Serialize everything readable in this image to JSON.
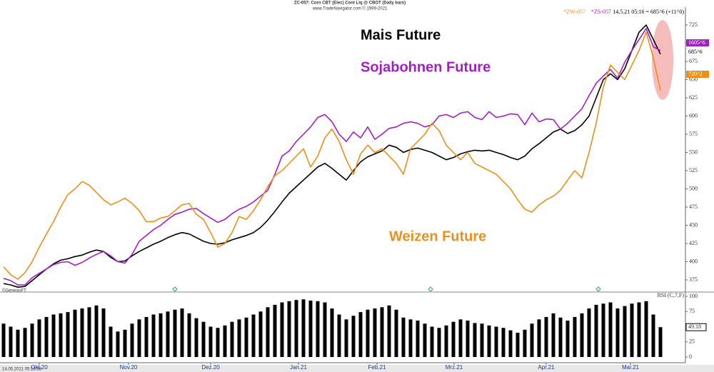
{
  "header": {
    "title": "ZC-057: Corn CBT (Elec) Cont Liq @ CBOT (Daily bars)",
    "source": "www.TradeNavigator.com © 1999-2021",
    "symbols": [
      "*ZW-057",
      "*ZS-057"
    ],
    "quote": "14.5.21 05:16 = 685^6 (+11^0)",
    "credit": "©GenesisFT",
    "timestamp": "14.05.2021 05:16:58"
  },
  "chart_data": [
    {
      "type": "line",
      "annotations": [
        "Mais Future",
        "Sojabohnen Future",
        "Weizen Future"
      ],
      "x": [
        0,
        1,
        2,
        3,
        4,
        5,
        6,
        7,
        8,
        9,
        10,
        11,
        12,
        13,
        14,
        15,
        16,
        17,
        18,
        19,
        20,
        21,
        22,
        23,
        24,
        25,
        26,
        27,
        28,
        29,
        30,
        31,
        32,
        33,
        34,
        35,
        36,
        37,
        38,
        39,
        40,
        41,
        42,
        43,
        44,
        45,
        46,
        47,
        48,
        49,
        50,
        51,
        52,
        53,
        54,
        55,
        56,
        57,
        58,
        59,
        60,
        61,
        62,
        63,
        64,
        65,
        66,
        67,
        68,
        69,
        70,
        71,
        72,
        73,
        74,
        75,
        76,
        77,
        78,
        79,
        80,
        81,
        82,
        83,
        84,
        85,
        86,
        87,
        88,
        89,
        90,
        91,
        92
      ],
      "xlim": [
        0,
        95.5
      ],
      "ylim": [
        359.3,
        744.6
      ],
      "yticks": [
        375,
        400,
        425,
        450,
        475,
        500,
        525,
        550,
        575,
        600,
        625,
        650,
        675,
        700,
        725
      ],
      "series": [
        {
          "name": "Mais Future",
          "color": "#000000",
          "last_label": "685^6",
          "values": [
            370,
            368,
            365,
            366,
            374,
            382,
            390,
            397,
            402,
            404,
            407,
            409,
            413,
            416,
            414,
            406,
            400,
            401,
            408,
            414,
            419,
            424,
            428,
            433,
            437,
            440,
            438,
            433,
            428,
            425,
            424,
            426,
            430,
            433,
            436,
            440,
            447,
            457,
            469,
            482,
            494,
            503,
            512,
            521,
            530,
            535,
            528,
            520,
            512,
            525,
            537,
            544,
            548,
            552,
            560,
            557,
            550,
            554,
            556,
            553,
            550,
            545,
            540,
            543,
            548,
            551,
            553,
            552,
            553,
            550,
            547,
            543,
            540,
            545,
            555,
            562,
            570,
            578,
            582,
            576,
            580,
            588,
            600,
            625,
            650,
            658,
            650,
            665,
            690,
            715,
            725,
            705,
            685
          ]
        },
        {
          "name": "Sojabohnen Future",
          "color": "#a020c0",
          "last_label": "1605^6",
          "values": [
            377,
            374,
            368,
            368,
            378,
            384,
            390,
            396,
            399,
            400,
            395,
            399,
            405,
            410,
            414,
            408,
            400,
            398,
            410,
            428,
            436,
            444,
            450,
            458,
            465,
            468,
            472,
            473,
            466,
            460,
            454,
            458,
            466,
            472,
            476,
            482,
            490,
            498,
            520,
            545,
            552,
            565,
            575,
            585,
            598,
            602,
            592,
            575,
            565,
            578,
            570,
            585,
            568,
            575,
            583,
            585,
            590,
            592,
            590,
            585,
            588,
            600,
            602,
            598,
            604,
            606,
            598,
            595,
            606,
            598,
            600,
            603,
            602,
            588,
            604,
            592,
            596,
            595,
            582,
            590,
            600,
            610,
            628,
            645,
            655,
            664,
            652,
            674,
            690,
            705,
            720,
            695,
            690
          ]
        },
        {
          "name": "Weizen Future",
          "color": "#e8901c",
          "last_label": "720^2",
          "values": [
            393,
            382,
            376,
            385,
            400,
            420,
            438,
            455,
            475,
            492,
            500,
            510,
            505,
            495,
            485,
            478,
            482,
            487,
            480,
            470,
            455,
            455,
            460,
            462,
            470,
            478,
            480,
            465,
            458,
            440,
            420,
            425,
            440,
            462,
            458,
            470,
            485,
            503,
            518,
            525,
            535,
            545,
            555,
            530,
            545,
            570,
            582,
            565,
            540,
            520,
            548,
            560,
            550,
            555,
            545,
            535,
            520,
            555,
            565,
            575,
            590,
            580,
            560,
            550,
            540,
            550,
            535,
            530,
            525,
            520,
            510,
            500,
            485,
            472,
            468,
            478,
            485,
            490,
            498,
            512,
            525,
            515,
            550,
            590,
            640,
            670,
            660,
            650,
            670,
            690,
            715,
            680,
            635
          ]
        }
      ]
    },
    {
      "type": "bar",
      "title": "RSI (C,7,F)",
      "x": [
        0,
        1,
        2,
        3,
        4,
        5,
        6,
        7,
        8,
        9,
        10,
        11,
        12,
        13,
        14,
        15,
        16,
        17,
        18,
        19,
        20,
        21,
        22,
        23,
        24,
        25,
        26,
        27,
        28,
        29,
        30,
        31,
        32,
        33,
        34,
        35,
        36,
        37,
        38,
        39,
        40,
        41,
        42,
        43,
        44,
        45,
        46,
        47,
        48,
        49,
        50,
        51,
        52,
        53,
        54,
        55,
        56,
        57,
        58,
        59,
        60,
        61,
        62,
        63,
        64,
        65,
        66,
        67,
        68,
        69,
        70,
        71,
        72,
        73,
        74,
        75,
        76,
        77,
        78,
        79,
        80,
        81,
        82,
        83,
        84,
        85,
        86,
        87,
        88,
        89,
        90,
        91,
        92
      ],
      "xlim": [
        0,
        95.5
      ],
      "xticks": [
        {
          "value": 5,
          "label": "Okt.20"
        },
        {
          "value": 17.5,
          "label": "Nov.20"
        },
        {
          "value": 29,
          "label": "Dez.20"
        },
        {
          "value": 41.3,
          "label": "Jan.21"
        },
        {
          "value": 52.3,
          "label": "Feb.21"
        },
        {
          "value": 63.1,
          "label": "Mrz.21"
        },
        {
          "value": 76,
          "label": "Apr.21"
        },
        {
          "value": 87.8,
          "label": "Mai.21"
        }
      ],
      "ylim": [
        -8.2,
        105.9
      ],
      "yticks": [
        0,
        25,
        50,
        75,
        100
      ],
      "color": "#000000",
      "values": [
        55,
        50,
        45,
        48,
        55,
        62,
        66,
        70,
        72,
        74,
        78,
        80,
        82,
        85,
        80,
        50,
        42,
        45,
        55,
        62,
        66,
        70,
        72,
        75,
        78,
        80,
        72,
        64,
        58,
        50,
        48,
        52,
        58,
        62,
        65,
        70,
        75,
        82,
        86,
        90,
        92,
        94,
        95,
        93,
        92,
        90,
        80,
        70,
        62,
        68,
        74,
        78,
        80,
        82,
        85,
        78,
        65,
        62,
        60,
        55,
        50,
        48,
        52,
        58,
        62,
        60,
        56,
        55,
        52,
        50,
        48,
        44,
        40,
        45,
        55,
        62,
        66,
        72,
        65,
        60,
        66,
        72,
        80,
        86,
        88,
        90,
        80,
        84,
        88,
        90,
        92,
        70,
        49.18
      ]
    }
  ]
}
